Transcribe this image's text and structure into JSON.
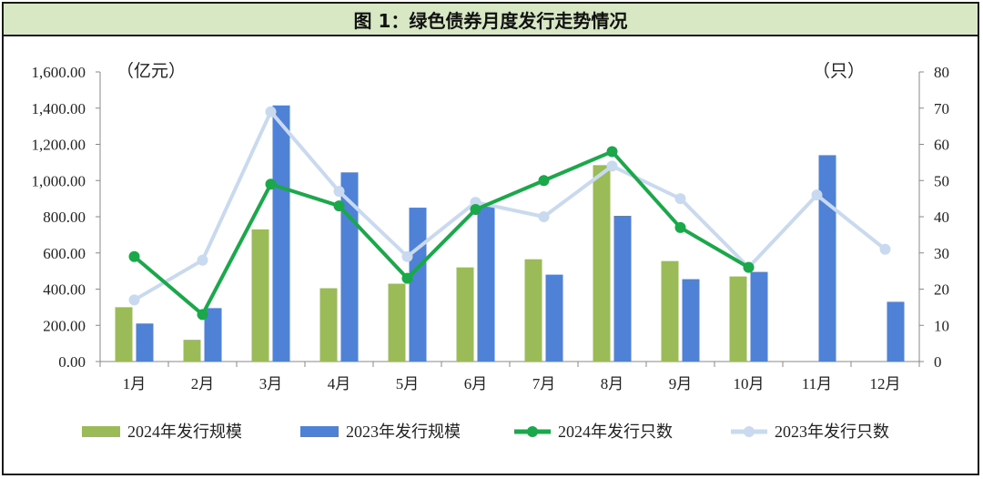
{
  "title": "图 1：绿色债券月度发行走势情况",
  "chart_data": {
    "type": "bar",
    "categories": [
      "1月",
      "2月",
      "3月",
      "4月",
      "5月",
      "6月",
      "7月",
      "8月",
      "9月",
      "10月",
      "11月",
      "12月"
    ],
    "y_left": {
      "unit": "（亿元）",
      "ylim": [
        0,
        1600
      ],
      "ticks": [
        "0.00",
        "200.00",
        "400.00",
        "600.00",
        "800.00",
        "1,000.00",
        "1,200.00",
        "1,400.00",
        "1,600.00"
      ]
    },
    "y_right": {
      "unit": "（只）",
      "ylim": [
        0,
        80
      ],
      "ticks": [
        "0",
        "10",
        "20",
        "30",
        "40",
        "50",
        "60",
        "70",
        "80"
      ]
    },
    "bar_series": [
      {
        "name": "2024年发行规模",
        "color": "#9bbb59",
        "values": [
          300,
          120,
          730,
          405,
          430,
          520,
          565,
          1085,
          555,
          470,
          null,
          null
        ]
      },
      {
        "name": "2023年发行规模",
        "color": "#4f81d6",
        "values": [
          210,
          295,
          1415,
          1045,
          850,
          855,
          480,
          805,
          455,
          495,
          1140,
          330
        ]
      }
    ],
    "line_series": [
      {
        "name": "2024年发行只数",
        "color": "#1aa84a",
        "values": [
          29,
          13,
          49,
          43,
          23,
          42,
          50,
          58,
          37,
          26,
          null,
          null
        ]
      },
      {
        "name": "2023年发行只数",
        "color": "#c9daf0",
        "values": [
          17,
          28,
          69,
          47,
          29,
          44,
          40,
          54,
          45,
          26,
          46,
          31
        ]
      }
    ],
    "legend_position": "bottom",
    "grid": false
  }
}
